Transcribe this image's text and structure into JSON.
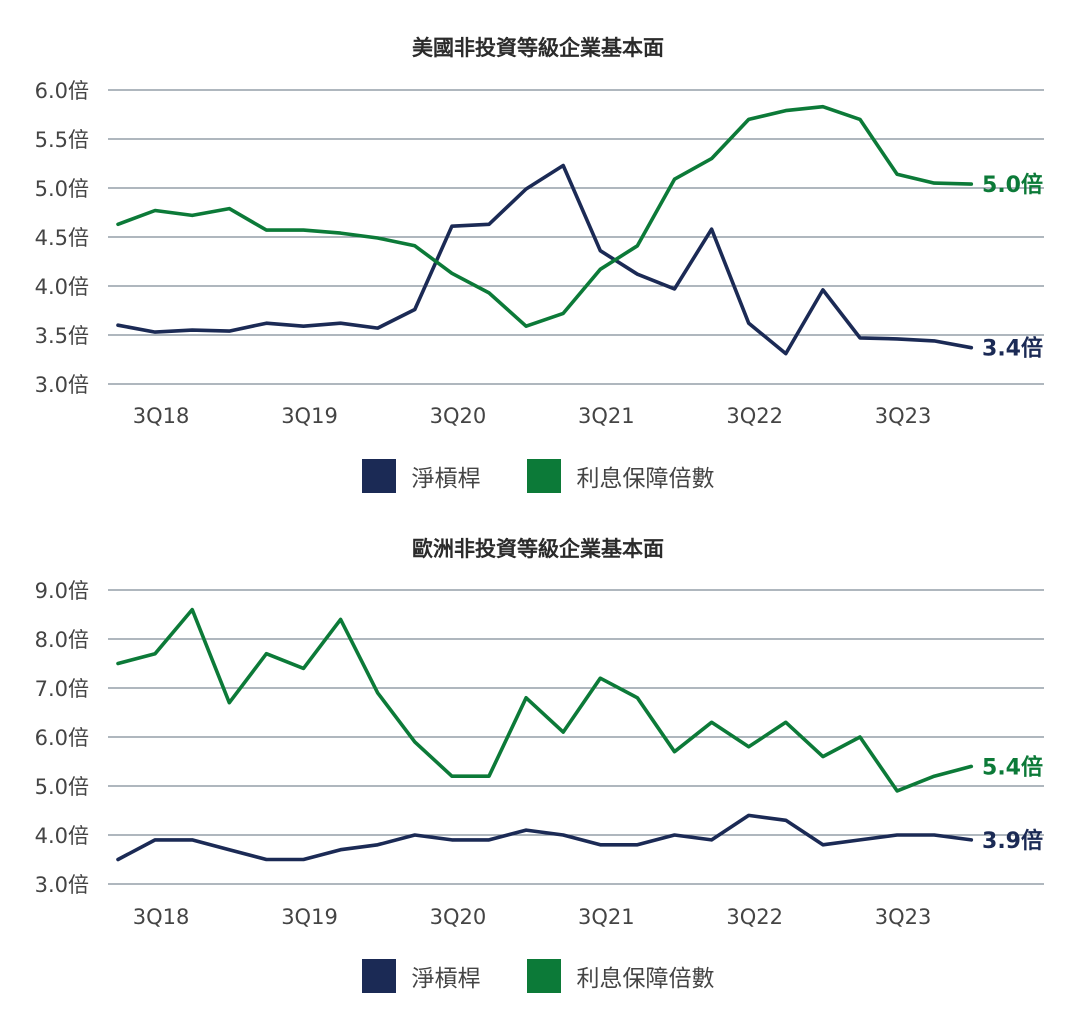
{
  "colors": {
    "navy": "#1b2a55",
    "green": "#0c7a38",
    "grid": "#7f8c96",
    "axis_text": "#444444"
  },
  "legend": {
    "leverage_label": "淨槓桿",
    "coverage_label": "利息保障倍數"
  },
  "chart_data": [
    {
      "type": "line",
      "title": "美國非投資等級企業基本面",
      "y_ticks": [
        "3.0倍",
        "3.5倍",
        "4.0倍",
        "4.5倍",
        "5.0倍",
        "5.5倍",
        "6.0倍"
      ],
      "x_ticks": [
        "3Q18",
        "3Q19",
        "3Q20",
        "3Q21",
        "3Q22",
        "3Q23"
      ],
      "ylim": [
        3.0,
        6.0
      ],
      "grid": true,
      "legend_position": "bottom",
      "series": [
        {
          "name": "淨槓桿",
          "color": "#1b2a55",
          "values": [
            3.6,
            3.53,
            3.55,
            3.54,
            3.62,
            3.59,
            3.62,
            3.57,
            3.76,
            4.61,
            4.63,
            4.99,
            5.23,
            4.36,
            4.12,
            3.97,
            4.58,
            3.62,
            3.31,
            3.96,
            3.47,
            3.46,
            3.44,
            3.37
          ],
          "end_label": "3.4倍"
        },
        {
          "name": "利息保障倍數",
          "color": "#0c7a38",
          "values": [
            4.63,
            4.77,
            4.72,
            4.79,
            4.57,
            4.57,
            4.54,
            4.49,
            4.41,
            4.13,
            3.93,
            3.59,
            3.72,
            4.17,
            4.41,
            5.09,
            5.3,
            5.7,
            5.79,
            5.83,
            5.7,
            5.14,
            5.05,
            5.04
          ],
          "end_label": "5.0倍"
        }
      ]
    },
    {
      "type": "line",
      "title": "歐洲非投資等級企業基本面",
      "y_ticks": [
        "3.0倍",
        "4.0倍",
        "5.0倍",
        "6.0倍",
        "7.0倍",
        "8.0倍",
        "9.0倍"
      ],
      "x_ticks": [
        "3Q18",
        "3Q19",
        "3Q20",
        "3Q21",
        "3Q22",
        "3Q23"
      ],
      "ylim": [
        3.0,
        9.0
      ],
      "grid": true,
      "legend_position": "bottom",
      "series": [
        {
          "name": "淨槓桿",
          "color": "#1b2a55",
          "values": [
            3.5,
            3.9,
            3.9,
            3.7,
            3.5,
            3.5,
            3.7,
            3.8,
            4.0,
            3.9,
            3.9,
            4.1,
            4.0,
            3.8,
            3.8,
            4.0,
            3.9,
            4.4,
            4.3,
            3.8,
            3.9,
            4.0,
            4.0,
            3.9
          ],
          "end_label": "3.9倍"
        },
        {
          "name": "利息保障倍數",
          "color": "#0c7a38",
          "values": [
            7.5,
            7.7,
            8.6,
            6.7,
            7.7,
            7.4,
            8.4,
            6.9,
            5.9,
            5.2,
            5.2,
            6.8,
            6.1,
            7.2,
            6.8,
            5.7,
            6.3,
            5.8,
            6.3,
            5.6,
            6.0,
            4.9,
            5.2,
            5.4
          ],
          "end_label": "5.4倍"
        }
      ]
    }
  ]
}
